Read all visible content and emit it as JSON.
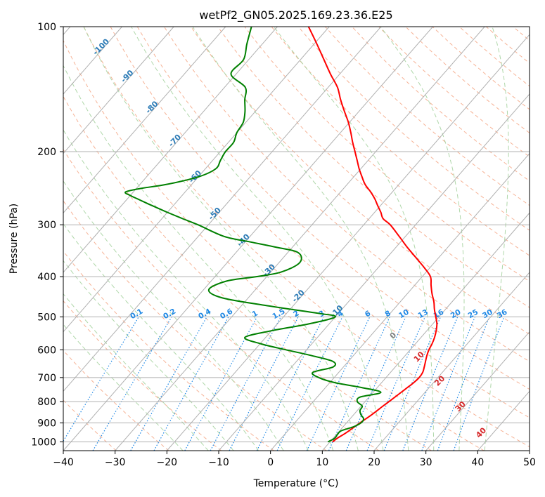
{
  "chart_data": {
    "type": "line",
    "subtype": "skew-t log-p diagram",
    "title": "wetPf2_GN05.2025.169.23.36.E25",
    "xlabel": "Temperature (°C)",
    "ylabel": "Pressure (hPa)",
    "xlim": [
      -40,
      50
    ],
    "ylim_pressure_hpa": [
      1050,
      100
    ],
    "y_scale": "log",
    "grid": true,
    "x_ticks": [
      -40,
      -30,
      -20,
      -10,
      0,
      10,
      20,
      30,
      40,
      50
    ],
    "x_tick_labels": [
      "−40",
      "−30",
      "−20",
      "−10",
      "0",
      "10",
      "20",
      "30",
      "40",
      "50"
    ],
    "y_ticks": [
      100,
      200,
      300,
      400,
      500,
      600,
      700,
      800,
      900,
      1000
    ],
    "y_tick_labels": [
      "100",
      "200",
      "300",
      "400",
      "500",
      "600",
      "700",
      "800",
      "900",
      "1000"
    ],
    "series": [
      {
        "role": "temperature",
        "color": "#ff0000",
        "pressure_hpa": [
          1000,
          980,
          950,
          900,
          860,
          820,
          790,
          760,
          740,
          720,
          700,
          680,
          660,
          640,
          620,
          600,
          580,
          560,
          540,
          520,
          500,
          480,
          460,
          440,
          420,
          400,
          380,
          360,
          340,
          320,
          300,
          290,
          280,
          270,
          260,
          250,
          240,
          230,
          220,
          210,
          200,
          190,
          180,
          170,
          160,
          150,
          140,
          130,
          120,
          110,
          100
        ],
        "temperature_c": [
          10.5,
          10.8,
          11.6,
          12.6,
          13.5,
          14.2,
          14.8,
          15.4,
          15.8,
          16.2,
          16.4,
          16.2,
          15.6,
          14.9,
          14.2,
          13.6,
          13.2,
          12.6,
          11.8,
          10.8,
          9.4,
          7.9,
          6.5,
          4.8,
          3.2,
          1.6,
          -1.2,
          -4.4,
          -7.8,
          -11.2,
          -14.9,
          -17.3,
          -18.8,
          -20.5,
          -22.2,
          -24.2,
          -26.5,
          -28.4,
          -30.3,
          -32.1,
          -34.0,
          -36.0,
          -38.0,
          -40.2,
          -42.8,
          -45.5,
          -48.2,
          -51.8,
          -55.5,
          -59.5,
          -64.0
        ]
      },
      {
        "role": "dewpoint",
        "color": "#008000",
        "pressure_hpa": [
          1000,
          980,
          960,
          940,
          920,
          900,
          880,
          860,
          840,
          820,
          800,
          780,
          760,
          740,
          720,
          700,
          680,
          660,
          640,
          620,
          600,
          580,
          560,
          540,
          520,
          500,
          490,
          470,
          450,
          430,
          410,
          400,
          390,
          370,
          350,
          340,
          330,
          320,
          300,
          290,
          280,
          270,
          265,
          260,
          255,
          250,
          245,
          240,
          230,
          220,
          210,
          200,
          190,
          180,
          170,
          160,
          150,
          140,
          130,
          120,
          110,
          100
        ],
        "temperature_c": [
          9.6,
          10.3,
          10.2,
          10.3,
          12.0,
          12.8,
          12.6,
          11.4,
          10.5,
          10.2,
          8.5,
          8.3,
          11.5,
          7.0,
          1.0,
          -3.0,
          -5.0,
          -2.0,
          -3.0,
          -8.0,
          -14.0,
          -20.0,
          -24.0,
          -20.0,
          -14.0,
          -10.0,
          -14.0,
          -25.0,
          -35.0,
          -39.0,
          -37.0,
          -32.0,
          -28.0,
          -26.0,
          -28.0,
          -33.0,
          -39.0,
          -45.0,
          -52.0,
          -56.0,
          -60.0,
          -64.0,
          -66.0,
          -68.0,
          -70.0,
          -71.5,
          -69.0,
          -65.0,
          -60.0,
          -58.0,
          -58.5,
          -59.0,
          -59.0,
          -60.0,
          -60.5,
          -62.0,
          -64.0,
          -66.0,
          -71.0,
          -71.0,
          -73.0,
          -75.0
        ]
      }
    ],
    "dry_adiabat_labels": [
      "-100",
      "-90",
      "-80",
      "-70",
      "-60",
      "-50",
      "-40",
      "-30",
      "-20",
      "-10"
    ],
    "mixing_ratio_labels": [
      "0.1",
      "0.2",
      "0.4",
      "0.6",
      "1",
      "1.5",
      "2",
      "3",
      "4",
      "6",
      "8",
      "10",
      "13",
      "16",
      "20",
      "25",
      "30",
      "36"
    ],
    "moist_adiabat_labels": [
      "0",
      "10",
      "20",
      "30",
      "40"
    ],
    "colors": {
      "temperature": "#ff0000",
      "dewpoint": "#008000",
      "isotherm_grid": "#b0b0b0",
      "dry_adiabat": "#f4a582",
      "moist_adiabat": "#a6d3a0",
      "mixing_ratio": "#1e88e5",
      "dry_adiabat_label": "#2c7bb6",
      "moist_adiabat_label": "#d62728",
      "zero_label": "#808080"
    }
  }
}
